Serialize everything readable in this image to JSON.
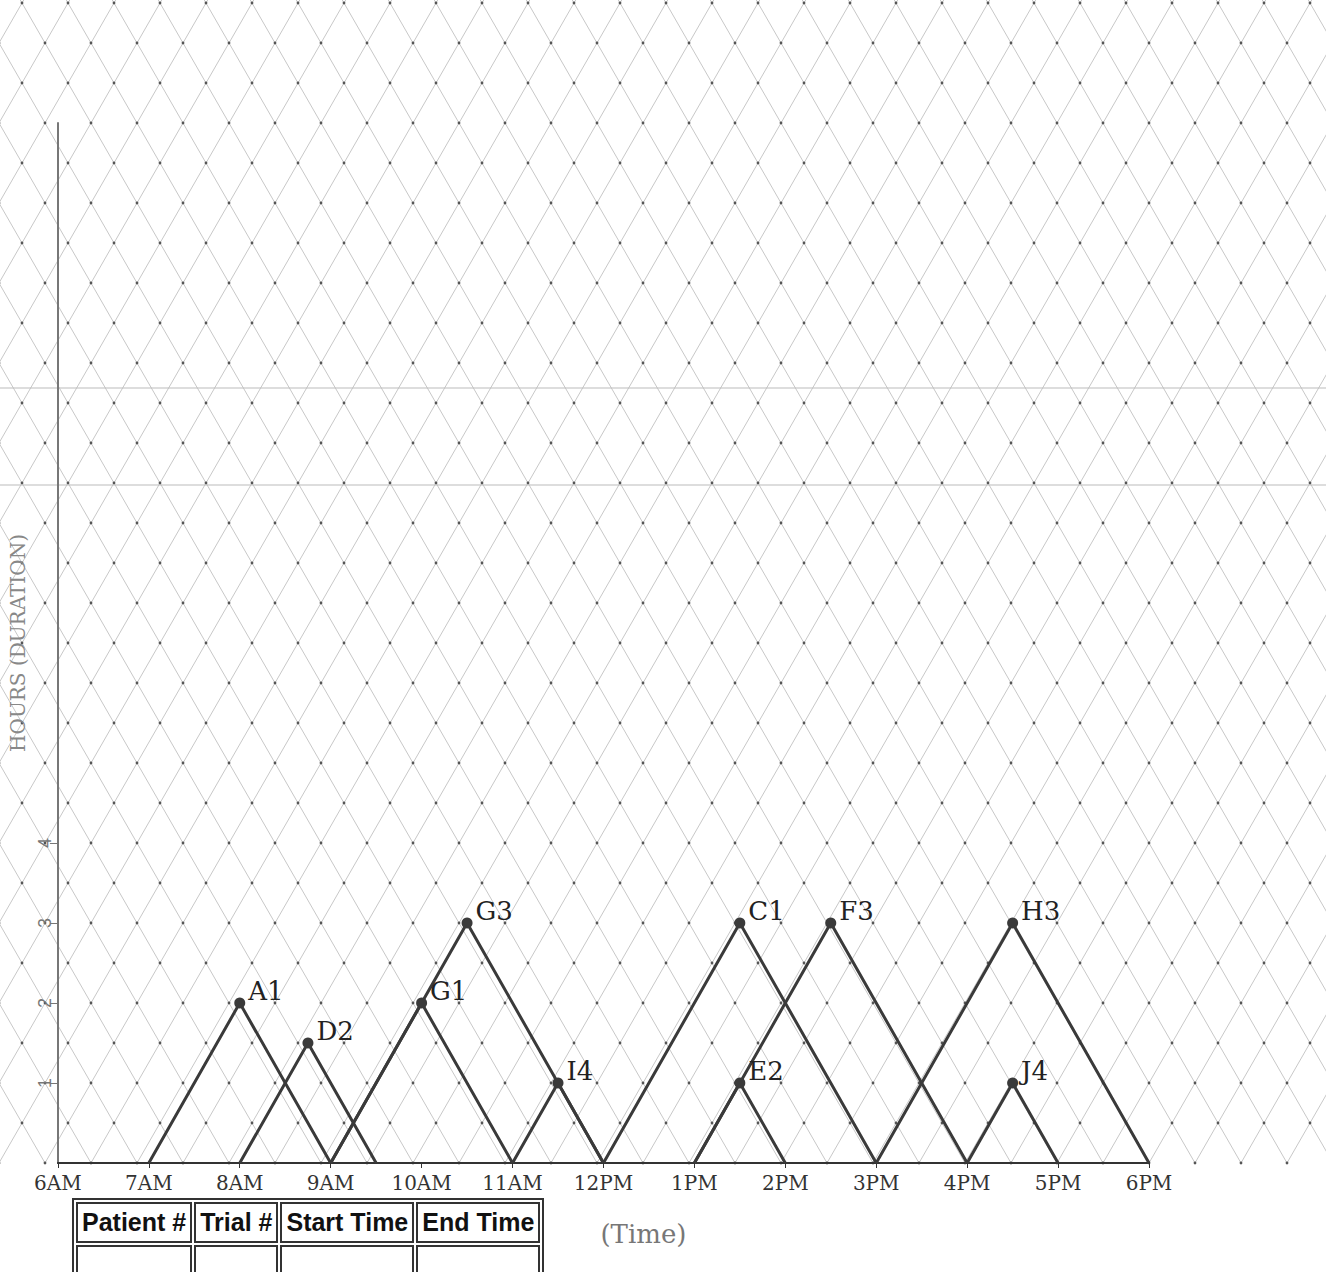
{
  "chart_data": {
    "type": "line",
    "x_label": "(Time)",
    "y_label": "HOURS (DURATION)",
    "xlim": [
      6,
      18
    ],
    "xticks": [
      {
        "value": 6,
        "label": "6AM"
      },
      {
        "value": 7,
        "label": "7AM"
      },
      {
        "value": 8,
        "label": "8AM"
      },
      {
        "value": 9,
        "label": "9AM"
      },
      {
        "value": 10,
        "label": "10AM"
      },
      {
        "value": 11,
        "label": "11AM"
      },
      {
        "value": 12,
        "label": "12PM"
      },
      {
        "value": 13,
        "label": "1PM"
      },
      {
        "value": 14,
        "label": "2PM"
      },
      {
        "value": 15,
        "label": "3PM"
      },
      {
        "value": 16,
        "label": "4PM"
      },
      {
        "value": 17,
        "label": "5PM"
      },
      {
        "value": 18,
        "label": "6PM"
      }
    ],
    "ylim": [
      0,
      13
    ],
    "yticks": [
      1,
      2,
      3,
      4
    ],
    "grid": false,
    "color": "#3a3a3a",
    "marker": "circle",
    "series": [
      {
        "name": "A1",
        "x": [
          7,
          8,
          9
        ],
        "values": [
          0,
          2,
          0
        ]
      },
      {
        "name": "D2",
        "x": [
          8,
          8.75,
          9.5
        ],
        "values": [
          0,
          1.5,
          0
        ]
      },
      {
        "name": "G1",
        "x": [
          9,
          10,
          11
        ],
        "values": [
          0,
          2,
          0
        ]
      },
      {
        "name": "G3",
        "x": [
          9,
          10.5,
          12
        ],
        "values": [
          0,
          3,
          0
        ]
      },
      {
        "name": "I4",
        "x": [
          11,
          11.5,
          12
        ],
        "values": [
          0,
          1,
          0
        ]
      },
      {
        "name": "C1",
        "x": [
          12,
          13.5,
          15
        ],
        "values": [
          0,
          3,
          0
        ]
      },
      {
        "name": "E2",
        "x": [
          13,
          13.5,
          14
        ],
        "values": [
          0,
          1,
          0
        ]
      },
      {
        "name": "F3",
        "x": [
          13,
          14.5,
          16
        ],
        "values": [
          0,
          3,
          0
        ]
      },
      {
        "name": "H3",
        "x": [
          15,
          16.5,
          18
        ],
        "values": [
          0,
          3,
          0
        ]
      },
      {
        "name": "J4",
        "x": [
          16,
          16.5,
          17
        ],
        "values": [
          0,
          1,
          0
        ]
      }
    ]
  },
  "table": {
    "header": [
      "Patient #",
      "Trial #",
      "Start Time",
      "End Time"
    ]
  }
}
